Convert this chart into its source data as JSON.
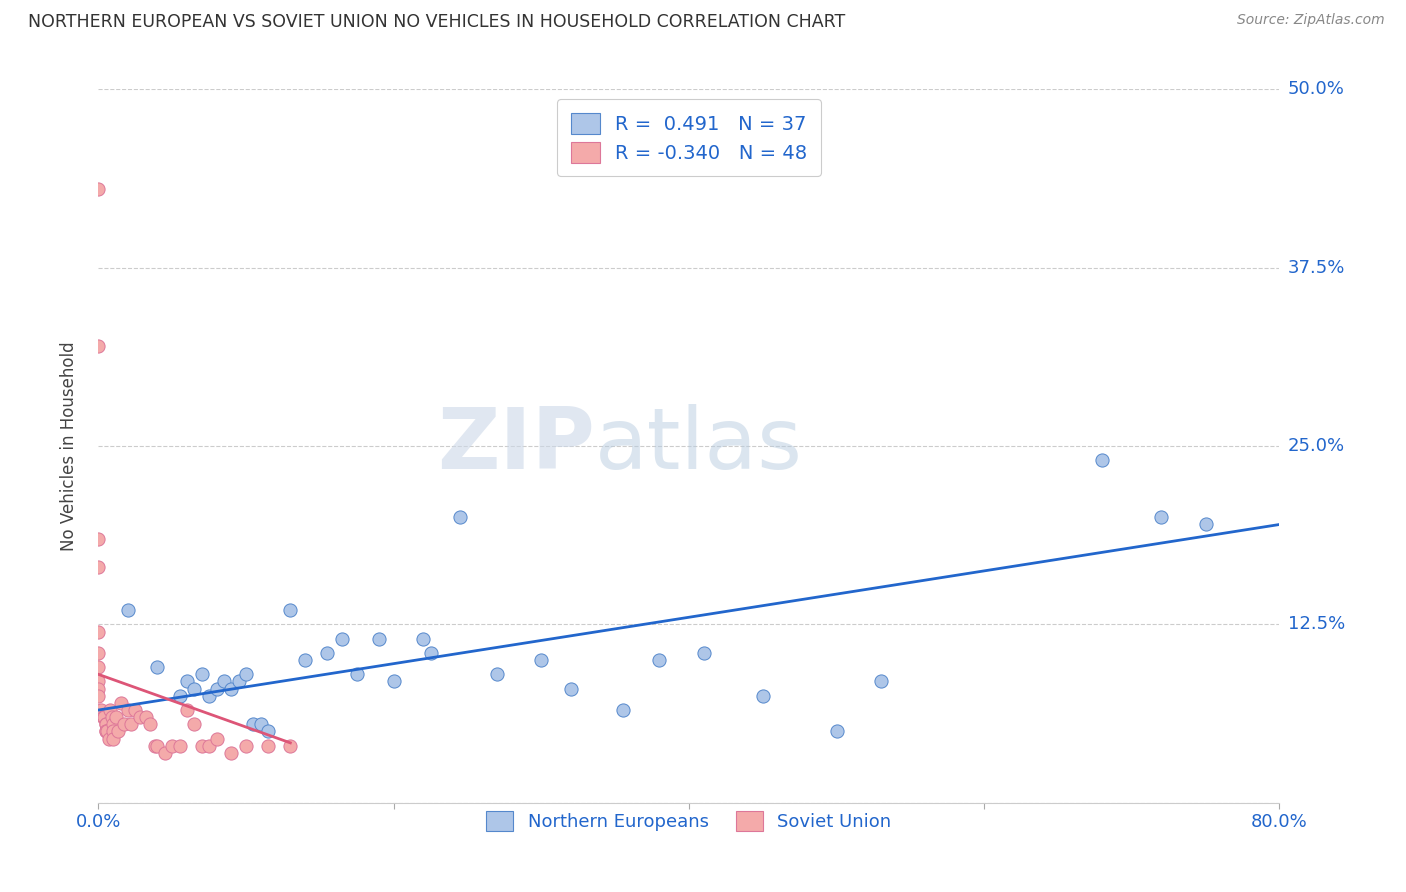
{
  "title": "NORTHERN EUROPEAN VS SOVIET UNION NO VEHICLES IN HOUSEHOLD CORRELATION CHART",
  "source": "Source: ZipAtlas.com",
  "ylabel": "No Vehicles in Household",
  "xlim": [
    0.0,
    0.8
  ],
  "ylim": [
    0.0,
    0.5
  ],
  "xticks": [
    0.0,
    0.2,
    0.4,
    0.6,
    0.8
  ],
  "xtick_labels": [
    "0.0%",
    "",
    "",
    "",
    "80.0%"
  ],
  "yticks_right": [
    0.5,
    0.375,
    0.25,
    0.125,
    0.0
  ],
  "ytick_labels_right": [
    "50.0%",
    "37.5%",
    "25.0%",
    "12.5%",
    ""
  ],
  "blue_R": 0.491,
  "blue_N": 37,
  "pink_R": -0.34,
  "pink_N": 48,
  "blue_scatter_x": [
    0.02,
    0.04,
    0.055,
    0.06,
    0.065,
    0.07,
    0.075,
    0.08,
    0.085,
    0.09,
    0.095,
    0.1,
    0.105,
    0.11,
    0.115,
    0.13,
    0.14,
    0.155,
    0.165,
    0.175,
    0.19,
    0.2,
    0.22,
    0.225,
    0.245,
    0.27,
    0.3,
    0.32,
    0.355,
    0.38,
    0.41,
    0.45,
    0.5,
    0.53,
    0.68,
    0.72,
    0.75
  ],
  "blue_scatter_y": [
    0.135,
    0.095,
    0.075,
    0.085,
    0.08,
    0.09,
    0.075,
    0.08,
    0.085,
    0.08,
    0.085,
    0.09,
    0.055,
    0.055,
    0.05,
    0.135,
    0.1,
    0.105,
    0.115,
    0.09,
    0.115,
    0.085,
    0.115,
    0.105,
    0.2,
    0.09,
    0.1,
    0.08,
    0.065,
    0.1,
    0.105,
    0.075,
    0.05,
    0.085,
    0.24,
    0.2,
    0.195
  ],
  "pink_scatter_x": [
    0.0,
    0.0,
    0.0,
    0.0,
    0.0,
    0.0,
    0.0,
    0.0,
    0.0,
    0.0,
    0.002,
    0.003,
    0.004,
    0.005,
    0.005,
    0.005,
    0.005,
    0.006,
    0.007,
    0.008,
    0.009,
    0.01,
    0.01,
    0.01,
    0.012,
    0.013,
    0.015,
    0.017,
    0.02,
    0.022,
    0.025,
    0.028,
    0.032,
    0.035,
    0.038,
    0.04,
    0.045,
    0.05,
    0.055,
    0.06,
    0.065,
    0.07,
    0.075,
    0.08,
    0.09,
    0.1,
    0.115,
    0.13
  ],
  "pink_scatter_y": [
    0.43,
    0.32,
    0.185,
    0.165,
    0.12,
    0.105,
    0.095,
    0.085,
    0.08,
    0.075,
    0.065,
    0.06,
    0.06,
    0.055,
    0.055,
    0.05,
    0.05,
    0.05,
    0.045,
    0.065,
    0.06,
    0.055,
    0.05,
    0.045,
    0.06,
    0.05,
    0.07,
    0.055,
    0.065,
    0.055,
    0.065,
    0.06,
    0.06,
    0.055,
    0.04,
    0.04,
    0.035,
    0.04,
    0.04,
    0.065,
    0.055,
    0.04,
    0.04,
    0.045,
    0.035,
    0.04,
    0.04,
    0.04
  ],
  "blue_line_x": [
    0.0,
    0.8
  ],
  "blue_line_y": [
    0.065,
    0.195
  ],
  "pink_line_x": [
    0.0,
    0.13
  ],
  "pink_line_y": [
    0.09,
    0.042
  ],
  "blue_color": "#aec6e8",
  "blue_edge_color": "#5588cc",
  "blue_line_color": "#2266cc",
  "pink_color": "#f4aaaa",
  "pink_edge_color": "#dd7799",
  "pink_line_color": "#dd5577",
  "background_color": "#ffffff",
  "grid_color": "#cccccc",
  "watermark_zip": "ZIP",
  "watermark_atlas": "atlas",
  "legend_label_blue": "Northern Europeans",
  "legend_label_pink": "Soviet Union"
}
